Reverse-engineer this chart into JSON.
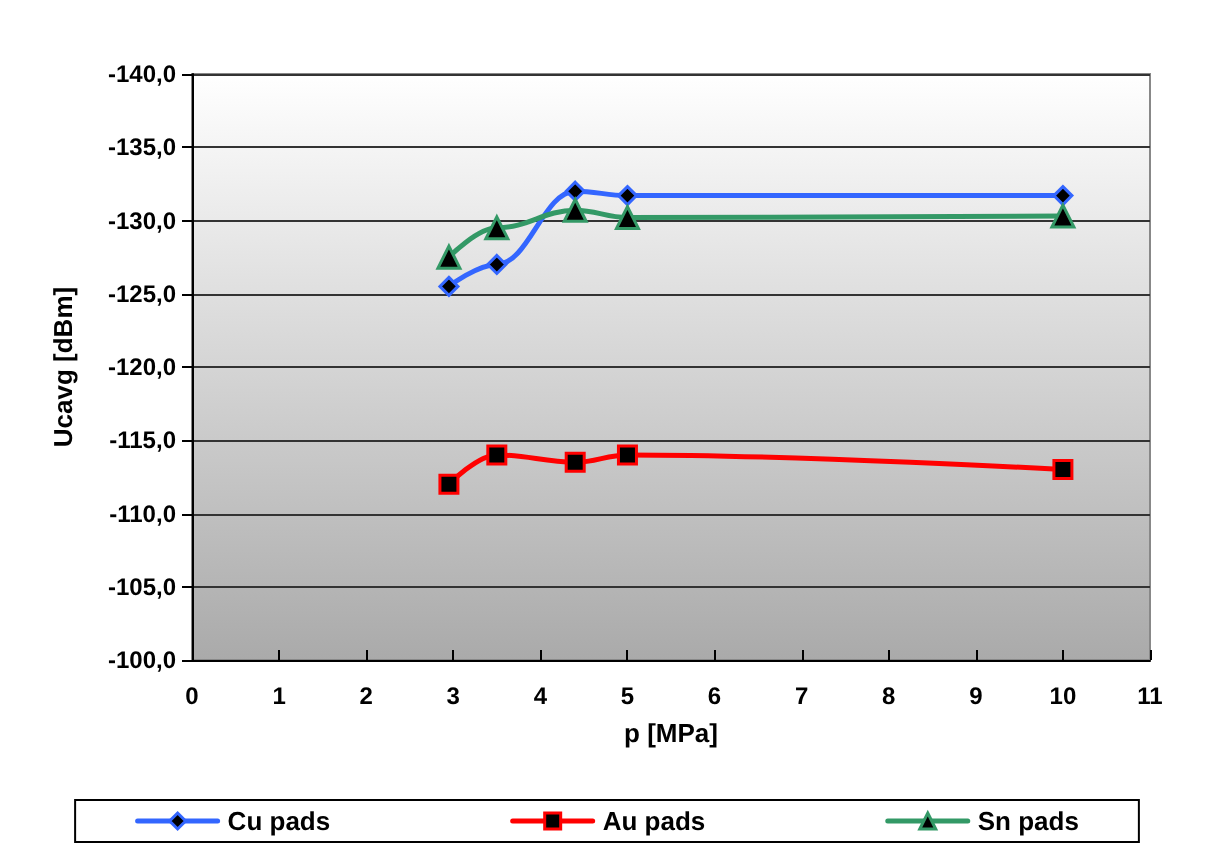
{
  "chart_data": {
    "type": "line",
    "xlabel": "p [MPa]",
    "ylabel": "Ucavg [dBm]",
    "xlim": [
      0,
      11
    ],
    "xticks": [
      0,
      1,
      2,
      3,
      4,
      5,
      6,
      7,
      8,
      9,
      10,
      11
    ],
    "ylim": [
      -100,
      -140
    ],
    "yticks": [
      {
        "value": -140,
        "label": "-140,0"
      },
      {
        "value": -135,
        "label": "-135,0"
      },
      {
        "value": -130,
        "label": "-130,0"
      },
      {
        "value": -125,
        "label": "-125,0"
      },
      {
        "value": -120,
        "label": "-120,0"
      },
      {
        "value": -115,
        "label": "-115,0"
      },
      {
        "value": -110,
        "label": "-110,0"
      },
      {
        "value": -105,
        "label": "-105,0"
      },
      {
        "value": -100,
        "label": "-100,0"
      }
    ],
    "grid": "y",
    "legend": "bottom",
    "series": [
      {
        "name": "Cu pads",
        "color": "#3366ff",
        "marker": "diamond",
        "x": [
          2.95,
          3.5,
          4.4,
          5,
          10
        ],
        "values": [
          -125.5,
          -127,
          -132,
          -131.7,
          -131.7
        ]
      },
      {
        "name": "Au pads",
        "color": "#ff0000",
        "marker": "square",
        "x": [
          2.95,
          3.5,
          4.4,
          5,
          10
        ],
        "values": [
          -112,
          -114,
          -113.5,
          -114,
          -113
        ]
      },
      {
        "name": "Sn pads",
        "color": "#339966",
        "marker": "triangle",
        "x": [
          2.95,
          3.5,
          4.4,
          5,
          10
        ],
        "values": [
          -127.5,
          -129.5,
          -130.7,
          -130.2,
          -130.3
        ]
      }
    ]
  }
}
